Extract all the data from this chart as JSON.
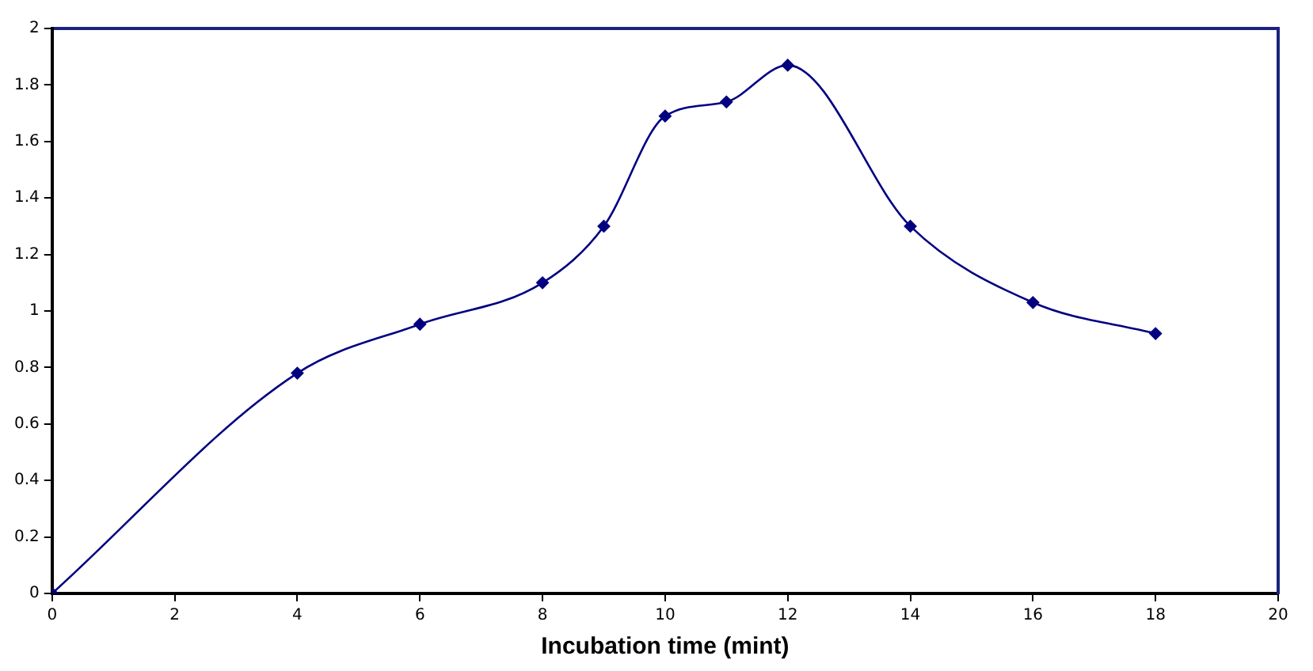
{
  "chart_data": {
    "type": "line",
    "xlabel": "Incubation time (mint)",
    "x": [
      0,
      4,
      6,
      8,
      9,
      10,
      11,
      12,
      14,
      16,
      18
    ],
    "series": [
      {
        "color": "#000080",
        "values": [
          0,
          0.78,
          0.953,
          1.1,
          1.3,
          1.69,
          1.74,
          1.87,
          1.3,
          1.03,
          0.92
        ]
      }
    ],
    "xlim": [
      0,
      20
    ],
    "xticks": [
      0,
      2,
      4,
      6,
      8,
      10,
      12,
      14,
      16,
      18,
      20
    ],
    "ylim": [
      0,
      2
    ],
    "yticks": [
      0,
      0.2,
      0.4,
      0.6,
      0.8,
      1,
      1.2,
      1.4,
      1.6,
      1.8,
      2
    ],
    "grid": false,
    "legend": false,
    "marker": "diamond",
    "line_style": "solid"
  }
}
